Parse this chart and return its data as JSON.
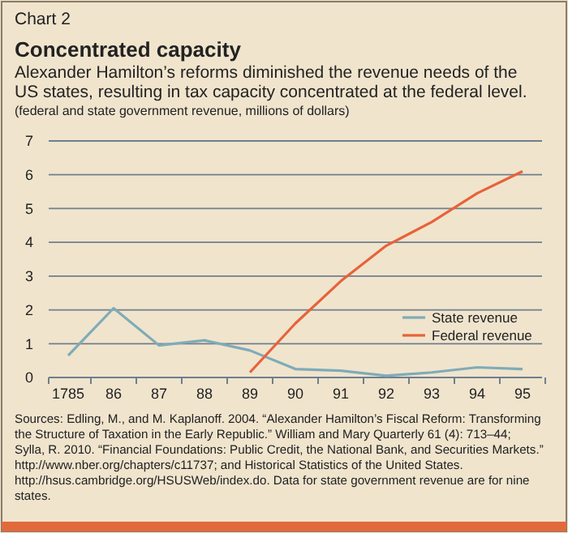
{
  "chart_data": {
    "type": "line",
    "title": "Concentrated capacity",
    "subtitle": "Alexander Hamilton’s reforms diminished the revenue needs of the US states, resulting in tax capacity concentrated at the federal level.",
    "ylabel": "(federal and state government revenue, millions of dollars)",
    "annotations": [
      "Chart 2",
      "Sources: Edling, M., and M. Kaplanoff. 2004. “Alexander Hamilton’s Fiscal Reform: Transforming the Structure of Taxation in the Early Republic.” William and Mary Quarterly 61 (4): 713–44; Sylla, R. 2010. “Financial Foundations: Public Credit, the National Bank, and Securities Markets.” http://www.nber.org/chapters/c11737; and Historical Statistics of the United States. http://hsus.cambridge.org/HSUSWeb/index.do. Data for state government revenue are for nine states."
    ],
    "categories": [
      "1785",
      "86",
      "87",
      "88",
      "89",
      "90",
      "91",
      "92",
      "93",
      "94",
      "95"
    ],
    "series": [
      {
        "name": "State revenue",
        "color": "#7fabb8",
        "values": [
          0.65,
          2.05,
          0.95,
          1.1,
          0.8,
          0.25,
          0.2,
          0.05,
          0.15,
          0.3,
          0.25
        ]
      },
      {
        "name": "Federal revenue",
        "color": "#e8623a",
        "values": [
          null,
          null,
          null,
          null,
          0.15,
          1.6,
          2.85,
          3.9,
          4.6,
          5.45,
          6.1
        ]
      }
    ],
    "ylim": [
      0,
      7
    ],
    "yticks": [
      0,
      1,
      2,
      3,
      4,
      5,
      6,
      7
    ],
    "grid": "y",
    "legend": "right",
    "marker": "none",
    "line_style": "solid"
  }
}
